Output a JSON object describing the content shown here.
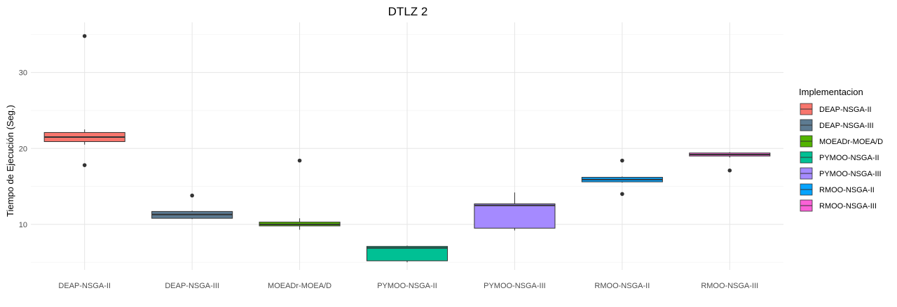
{
  "chart_data": {
    "type": "boxplot",
    "title": "DTLZ 2",
    "xlabel": "",
    "ylabel": "Tiempo de Ejecución (Seg.)",
    "ylim": [
      4.0,
      36.6
    ],
    "yticks": [
      10,
      20,
      30
    ],
    "grid": true,
    "legend": {
      "title": "Implementacion",
      "position": "right"
    },
    "categories": [
      "DEAP-NSGA-II",
      "DEAP-NSGA-III",
      "MOEADr-MOEA/D",
      "PYMOO-NSGA-II",
      "PYMOO-NSGA-III",
      "RMOO-NSGA-II",
      "RMOO-NSGA-III"
    ],
    "series": [
      {
        "name": "DEAP-NSGA-II",
        "color": "#F8766D",
        "min": 20.5,
        "q1": 20.9,
        "median": 21.5,
        "q3": 22.1,
        "max": 22.5,
        "outliers": [
          34.8,
          17.8
        ]
      },
      {
        "name": "DEAP-NSGA-III",
        "color": "#5D7B92",
        "min": 10.7,
        "q1": 10.8,
        "median": 11.3,
        "q3": 11.7,
        "max": 11.8,
        "outliers": [
          13.8
        ]
      },
      {
        "name": "MOEADr-MOEA/D",
        "color": "#53B400",
        "min": 9.3,
        "q1": 9.8,
        "median": 10.0,
        "q3": 10.3,
        "max": 10.8,
        "outliers": [
          18.4
        ]
      },
      {
        "name": "PYMOO-NSGA-II",
        "color": "#00C094",
        "min": 5.0,
        "q1": 5.2,
        "median": 6.9,
        "q3": 7.1,
        "max": 7.2,
        "outliers": []
      },
      {
        "name": "PYMOO-NSGA-III",
        "color": "#A58AFF",
        "min": 9.2,
        "q1": 9.5,
        "median": 12.5,
        "q3": 12.7,
        "max": 14.2,
        "outliers": []
      },
      {
        "name": "RMOO-NSGA-II",
        "color": "#06A4FF",
        "min": 15.5,
        "q1": 15.6,
        "median": 15.9,
        "q3": 16.2,
        "max": 16.3,
        "outliers": [
          18.4,
          14.0
        ]
      },
      {
        "name": "RMOO-NSGA-III",
        "color": "#FB61D7",
        "min": 18.8,
        "q1": 19.0,
        "median": 19.2,
        "q3": 19.4,
        "max": 19.5,
        "outliers": [
          17.1
        ]
      }
    ]
  }
}
